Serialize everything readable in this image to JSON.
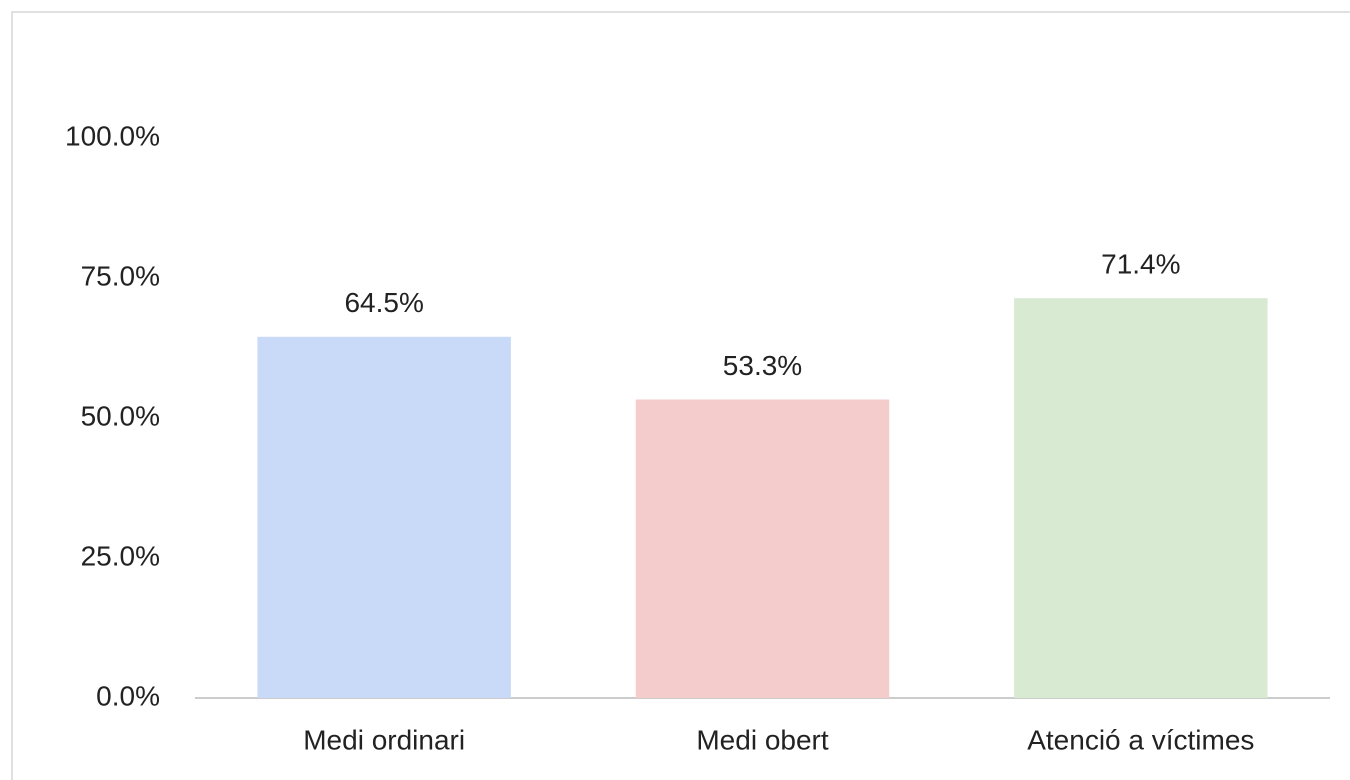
{
  "chart_data": {
    "type": "bar",
    "categories": [
      "Medi ordinari",
      "Medi obert",
      "Atenció a víctimes"
    ],
    "values": [
      64.5,
      53.3,
      71.4
    ],
    "value_labels": [
      "64.5%",
      "53.3%",
      "71.4%"
    ],
    "colors": [
      "#c9daf8",
      "#f4cccc",
      "#d9ead3"
    ],
    "ylim": [
      0,
      100
    ],
    "yticks": [
      {
        "value": 0,
        "label": "0.0%"
      },
      {
        "value": 25,
        "label": "25.0%"
      },
      {
        "value": 50,
        "label": "50.0%"
      },
      {
        "value": 75,
        "label": "75.0%"
      },
      {
        "value": 100,
        "label": "100.0%"
      }
    ],
    "grid": false
  }
}
